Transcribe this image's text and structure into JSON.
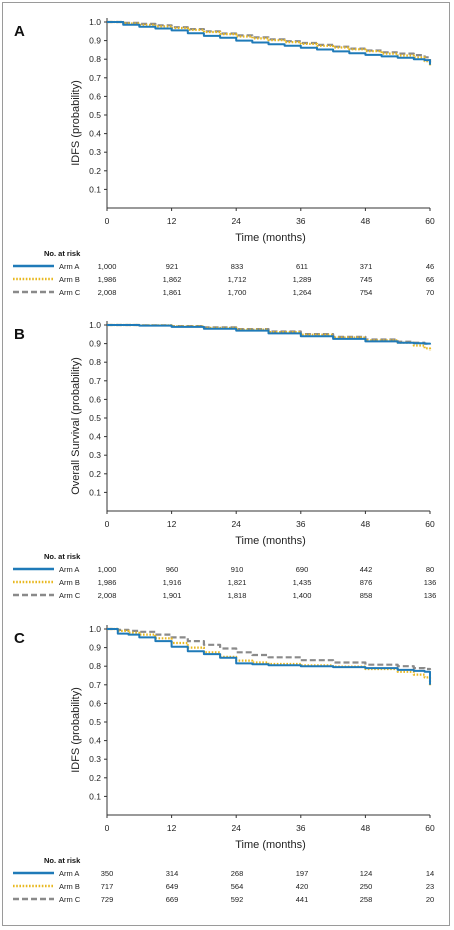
{
  "colors": {
    "arm_a": "#1f7ab8",
    "arm_b": "#e8b820",
    "arm_c": "#8a8a8a",
    "axis": "#333333",
    "border": "#9a9a9a"
  },
  "chart_data": [
    {
      "type": "line",
      "panel": "A",
      "xlabel": "Time (months)",
      "ylabel": "IDFS (probability)",
      "xlim": [
        0,
        60
      ],
      "ylim": [
        0,
        1.0
      ],
      "xticks": [
        "0",
        "12",
        "24",
        "36",
        "48",
        "60"
      ],
      "yticks": [
        "0.1",
        "0.2",
        "0.3",
        "0.4",
        "0.5",
        "0.6",
        "0.7",
        "0.8",
        "0.9",
        "1.0"
      ],
      "grid": false,
      "series": [
        {
          "name": "Arm A",
          "style": "solid",
          "x": [
            0,
            3,
            6,
            9,
            12,
            15,
            18,
            21,
            24,
            27,
            30,
            33,
            36,
            39,
            42,
            45,
            48,
            51,
            54,
            57,
            59,
            60
          ],
          "y": [
            1.0,
            0.985,
            0.975,
            0.965,
            0.955,
            0.94,
            0.925,
            0.915,
            0.9,
            0.89,
            0.88,
            0.872,
            0.862,
            0.852,
            0.842,
            0.832,
            0.823,
            0.815,
            0.808,
            0.8,
            0.795,
            0.77
          ]
        },
        {
          "name": "Arm B",
          "style": "dotted",
          "x": [
            0,
            3,
            6,
            9,
            12,
            15,
            18,
            21,
            24,
            27,
            30,
            33,
            36,
            39,
            42,
            45,
            48,
            51,
            54,
            57,
            59,
            60
          ],
          "y": [
            1.0,
            0.992,
            0.985,
            0.977,
            0.968,
            0.958,
            0.946,
            0.935,
            0.922,
            0.912,
            0.902,
            0.892,
            0.882,
            0.872,
            0.863,
            0.853,
            0.843,
            0.83,
            0.82,
            0.81,
            0.79,
            0.76
          ]
        },
        {
          "name": "Arm C",
          "style": "dashed",
          "x": [
            0,
            3,
            6,
            9,
            12,
            15,
            18,
            21,
            24,
            27,
            30,
            33,
            36,
            39,
            42,
            45,
            48,
            51,
            54,
            57,
            59,
            60
          ],
          "y": [
            1.0,
            0.995,
            0.99,
            0.982,
            0.972,
            0.962,
            0.95,
            0.938,
            0.928,
            0.917,
            0.907,
            0.897,
            0.887,
            0.877,
            0.867,
            0.857,
            0.847,
            0.837,
            0.83,
            0.822,
            0.81,
            0.78
          ]
        }
      ],
      "risk_table": {
        "title": "No. at risk",
        "rows": [
          {
            "label": "Arm A",
            "values": [
              "1,000",
              "921",
              "833",
              "611",
              "371",
              "46"
            ]
          },
          {
            "label": "Arm B",
            "values": [
              "1,986",
              "1,862",
              "1,712",
              "1,289",
              "745",
              "66"
            ]
          },
          {
            "label": "Arm C",
            "values": [
              "2,008",
              "1,861",
              "1,700",
              "1,264",
              "754",
              "70"
            ]
          }
        ]
      }
    },
    {
      "type": "line",
      "panel": "B",
      "xlabel": "Time (months)",
      "ylabel": "Overall Survival (probability)",
      "xlim": [
        0,
        60
      ],
      "ylim": [
        0,
        1.0
      ],
      "xticks": [
        "0",
        "12",
        "24",
        "36",
        "48",
        "60"
      ],
      "yticks": [
        "0.1",
        "0.2",
        "0.3",
        "0.4",
        "0.5",
        "0.6",
        "0.7",
        "0.8",
        "0.9",
        "1.0"
      ],
      "grid": false,
      "series": [
        {
          "name": "Arm A",
          "style": "solid",
          "x": [
            0,
            6,
            12,
            18,
            24,
            30,
            36,
            42,
            48,
            54,
            57,
            59,
            60
          ],
          "y": [
            1.0,
            0.997,
            0.99,
            0.98,
            0.97,
            0.955,
            0.94,
            0.925,
            0.912,
            0.905,
            0.902,
            0.9,
            0.895
          ]
        },
        {
          "name": "Arm B",
          "style": "dotted",
          "x": [
            0,
            6,
            12,
            18,
            24,
            30,
            36,
            42,
            48,
            54,
            57,
            59,
            60
          ],
          "y": [
            1.0,
            0.998,
            0.993,
            0.985,
            0.975,
            0.962,
            0.948,
            0.933,
            0.918,
            0.905,
            0.89,
            0.875,
            0.86
          ]
        },
        {
          "name": "Arm C",
          "style": "dashed",
          "x": [
            0,
            6,
            12,
            18,
            24,
            30,
            36,
            42,
            48,
            54,
            57,
            59,
            60
          ],
          "y": [
            1.0,
            0.998,
            0.994,
            0.987,
            0.978,
            0.965,
            0.951,
            0.936,
            0.922,
            0.91,
            0.905,
            0.9,
            0.895
          ]
        }
      ],
      "risk_table": {
        "title": "No. at risk",
        "rows": [
          {
            "label": "Arm A",
            "values": [
              "1,000",
              "960",
              "910",
              "690",
              "442",
              "80"
            ]
          },
          {
            "label": "Arm B",
            "values": [
              "1,986",
              "1,916",
              "1,821",
              "1,435",
              "876",
              "136"
            ]
          },
          {
            "label": "Arm C",
            "values": [
              "2,008",
              "1,901",
              "1,818",
              "1,400",
              "858",
              "136"
            ]
          }
        ]
      }
    },
    {
      "type": "line",
      "panel": "C",
      "xlabel": "Time (months)",
      "ylabel": "IDFS (probability)",
      "xlim": [
        0,
        60
      ],
      "ylim": [
        0,
        1.0
      ],
      "xticks": [
        "0",
        "12",
        "24",
        "36",
        "48",
        "60"
      ],
      "yticks": [
        "0.1",
        "0.2",
        "0.3",
        "0.4",
        "0.5",
        "0.6",
        "0.7",
        "0.8",
        "0.9",
        "1.0"
      ],
      "grid": false,
      "series": [
        {
          "name": "Arm A",
          "style": "solid",
          "x": [
            0,
            2,
            4,
            6,
            9,
            12,
            15,
            18,
            21,
            24,
            27,
            30,
            36,
            42,
            48,
            54,
            57,
            59,
            60
          ],
          "y": [
            1.0,
            0.975,
            0.97,
            0.955,
            0.935,
            0.905,
            0.88,
            0.865,
            0.845,
            0.815,
            0.81,
            0.805,
            0.8,
            0.795,
            0.79,
            0.78,
            0.775,
            0.77,
            0.7
          ]
        },
        {
          "name": "Arm B",
          "style": "dotted",
          "x": [
            0,
            2,
            4,
            6,
            9,
            12,
            15,
            18,
            21,
            24,
            27,
            30,
            36,
            42,
            48,
            54,
            57,
            59,
            60
          ],
          "y": [
            1.0,
            0.99,
            0.98,
            0.97,
            0.95,
            0.925,
            0.9,
            0.875,
            0.85,
            0.83,
            0.82,
            0.812,
            0.805,
            0.798,
            0.785,
            0.77,
            0.755,
            0.74,
            0.69
          ]
        },
        {
          "name": "Arm C",
          "style": "dashed",
          "x": [
            0,
            2,
            4,
            6,
            9,
            12,
            15,
            18,
            21,
            24,
            27,
            30,
            36,
            42,
            48,
            54,
            57,
            59,
            60
          ],
          "y": [
            1.0,
            0.995,
            0.99,
            0.985,
            0.97,
            0.955,
            0.935,
            0.915,
            0.895,
            0.875,
            0.86,
            0.848,
            0.832,
            0.82,
            0.808,
            0.8,
            0.79,
            0.785,
            0.78
          ]
        }
      ],
      "risk_table": {
        "title": "No. at risk",
        "rows": [
          {
            "label": "Arm A",
            "values": [
              "350",
              "314",
              "268",
              "197",
              "124",
              "14"
            ]
          },
          {
            "label": "Arm B",
            "values": [
              "717",
              "649",
              "564",
              "420",
              "250",
              "23"
            ]
          },
          {
            "label": "Arm C",
            "values": [
              "729",
              "669",
              "592",
              "441",
              "258",
              "20"
            ]
          }
        ]
      }
    }
  ]
}
